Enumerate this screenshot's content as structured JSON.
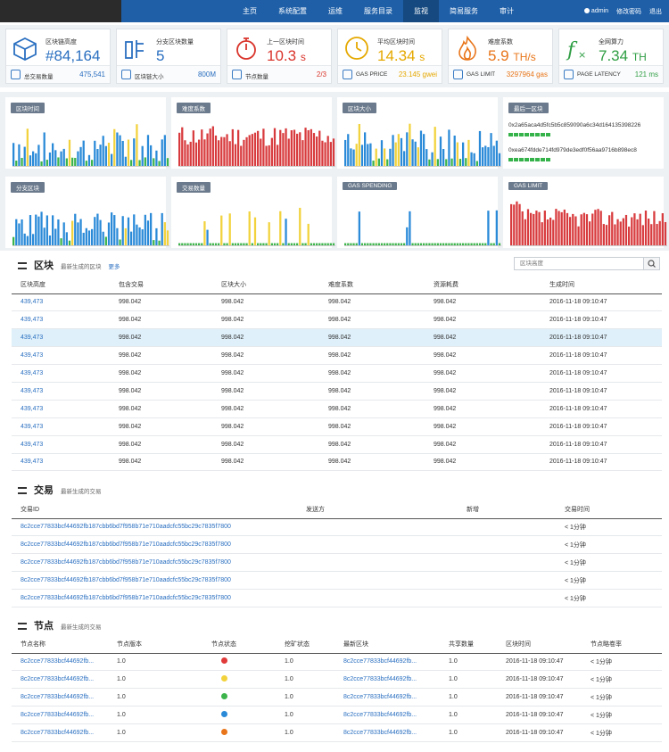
{
  "nav": {
    "items": [
      "主页",
      "系统配置",
      "运维",
      "服务目录",
      "监视",
      "简易服务",
      "审计"
    ],
    "active_index": 4
  },
  "user": {
    "name": "admin",
    "change_password": "修改密码",
    "logout": "退出"
  },
  "stats": [
    {
      "label": "区块链高度",
      "value": "#84,164",
      "color": "#2a6fc0",
      "icon": "cube-icon",
      "foot_label": "总交易数量",
      "foot_value": "475,541",
      "foot_icon": "transactions-icon"
    },
    {
      "label": "分支区块数量",
      "value": "5",
      "color": "#2a6fc0",
      "icon": "fork-blocks-icon",
      "foot_label": "区块链大小",
      "foot_value": "800M",
      "foot_icon": "chain-size-icon"
    },
    {
      "label": "上一区块时间",
      "value": "10.3",
      "unit": "s",
      "color": "#d9342b",
      "icon": "stopwatch-icon",
      "foot_label": "节点数量",
      "foot_value": "2/3",
      "foot_icon": "nodes-icon"
    },
    {
      "label": "平均区块时间",
      "value": "14.34",
      "unit": "s",
      "color": "#e5a800",
      "icon": "clock-icon",
      "foot_label": "GAS PRICE",
      "foot_value": "23.145 gwei",
      "foot_icon": "gas-price-icon"
    },
    {
      "label": "难度系数",
      "value": "5.9",
      "unit": "TH/s",
      "color": "#e8751a",
      "icon": "flame-icon",
      "foot_label": "GAS LIMIT",
      "foot_value": "3297964 gas",
      "foot_icon": "gas-limit-icon"
    },
    {
      "label": "全网算力",
      "value": "7.34",
      "unit": "TH",
      "color": "#2f9e44",
      "icon": "function-icon",
      "foot_label": "PAGE LATENCY",
      "foot_value": "121 ms",
      "foot_icon": "latency-icon"
    }
  ],
  "charts": {
    "block_time": "区块时间",
    "difficulty": "难度系数",
    "block_size": "区块大小",
    "last_block": "最后一区块",
    "fork_blocks": "分支区块",
    "tx_count": "交易数量",
    "gas_spending": "GAS SPENDING",
    "gas_limit": "GAS LIMIT"
  },
  "last_block": {
    "hashes": [
      "0x2a65aca4d5fc5b5c859090a6c34d164135398226",
      "0xea674fdde714fd979de3edf0f56aa9716b898ec8"
    ]
  },
  "colors": {
    "blue": "#2a8ad8",
    "yellow": "#f2d23c",
    "green": "#3cb44b",
    "red": "#d83b3e"
  },
  "blocks": {
    "title": "区块",
    "subtitle": "最新生成的区块",
    "more": "更多",
    "search_placeholder": "区块高度",
    "columns": [
      "区块高度",
      "包含交易",
      "区块大小",
      "难度系数",
      "资源耗费",
      "生成时间"
    ],
    "rows": [
      [
        "439,473",
        "998.042",
        "998.042",
        "998.042",
        "998.042",
        "2016-11-18 09:10:47"
      ],
      [
        "439,473",
        "998.042",
        "998.042",
        "998.042",
        "998.042",
        "2016-11-18 09:10:47"
      ],
      [
        "439,473",
        "998.042",
        "998.042",
        "998.042",
        "998.042",
        "2016-11-18 09:10:47"
      ],
      [
        "439,473",
        "998.042",
        "998.042",
        "998.042",
        "998.042",
        "2016-11-18 09:10:47"
      ],
      [
        "439,473",
        "998.042",
        "998.042",
        "998.042",
        "998.042",
        "2016-11-18 09:10:47"
      ],
      [
        "439,473",
        "998.042",
        "998.042",
        "998.042",
        "998.042",
        "2016-11-18 09:10:47"
      ],
      [
        "439,473",
        "998.042",
        "998.042",
        "998.042",
        "998.042",
        "2016-11-18 09:10:47"
      ],
      [
        "439,473",
        "998.042",
        "998.042",
        "998.042",
        "998.042",
        "2016-11-18 09:10:47"
      ],
      [
        "439,473",
        "998.042",
        "998.042",
        "998.042",
        "998.042",
        "2016-11-18 09:10:47"
      ],
      [
        "439,473",
        "998.042",
        "998.042",
        "998.042",
        "998.042",
        "2016-11-18 09:10:47"
      ]
    ],
    "highlight_row": 2
  },
  "transactions": {
    "title": "交易",
    "subtitle": "最新生成的交易",
    "columns": [
      "交易ID",
      "发送方",
      "新增",
      "交易时间"
    ],
    "rows": [
      [
        "8c2cce77833bcf44692fb187cbb6bd7f958b71e710aadcfc55bc29c7835f7800",
        "",
        "",
        "< 1分钟"
      ],
      [
        "8c2cce77833bcf44692fb187cbb6bd7f958b71e710aadcfc55bc29c7835f7800",
        "",
        "",
        "< 1分钟"
      ],
      [
        "8c2cce77833bcf44692fb187cbb6bd7f958b71e710aadcfc55bc29c7835f7800",
        "",
        "",
        "< 1分钟"
      ],
      [
        "8c2cce77833bcf44692fb187cbb6bd7f958b71e710aadcfc55bc29c7835f7800",
        "",
        "",
        "< 1分钟"
      ],
      [
        "8c2cce77833bcf44692fb187cbb6bd7f958b71e710aadcfc55bc29c7835f7800",
        "",
        "",
        "< 1分钟"
      ]
    ]
  },
  "nodes": {
    "title": "节点",
    "subtitle": "最新生成的交易",
    "columns": [
      "节点名称",
      "节点版本",
      "节点状态",
      "挖矿状态",
      "最新区块",
      "共享数量",
      "区块时间",
      "节点略卷率"
    ],
    "rows": [
      {
        "name": "8c2cce77833bcf44692fb...",
        "version": "1.0",
        "status_color": "#e03a3a",
        "mining": "1.0",
        "latest": "8c2cce77833bcf44692fb...",
        "shared": "1.0",
        "time": "2016-11-18 09:10:47",
        "rate": "< 1分钟"
      },
      {
        "name": "8c2cce77833bcf44692fb...",
        "version": "1.0",
        "status_color": "#f2d23c",
        "mining": "1.0",
        "latest": "8c2cce77833bcf44692fb...",
        "shared": "1.0",
        "time": "2016-11-18 09:10:47",
        "rate": "< 1分钟"
      },
      {
        "name": "8c2cce77833bcf44692fb...",
        "version": "1.0",
        "status_color": "#3cb44b",
        "mining": "1.0",
        "latest": "8c2cce77833bcf44692fb...",
        "shared": "1.0",
        "time": "2016-11-18 09:10:47",
        "rate": "< 1分钟"
      },
      {
        "name": "8c2cce77833bcf44692fb...",
        "version": "1.0",
        "status_color": "#2a8ad8",
        "mining": "1.0",
        "latest": "8c2cce77833bcf44692fb...",
        "shared": "1.0",
        "time": "2016-11-18 09:10:47",
        "rate": "< 1分钟"
      },
      {
        "name": "8c2cce77833bcf44692fb...",
        "version": "1.0",
        "status_color": "#e8751a",
        "mining": "1.0",
        "latest": "8c2cce77833bcf44692fb...",
        "shared": "1.0",
        "time": "2016-11-18 09:10:47",
        "rate": "< 1分钟"
      }
    ]
  }
}
